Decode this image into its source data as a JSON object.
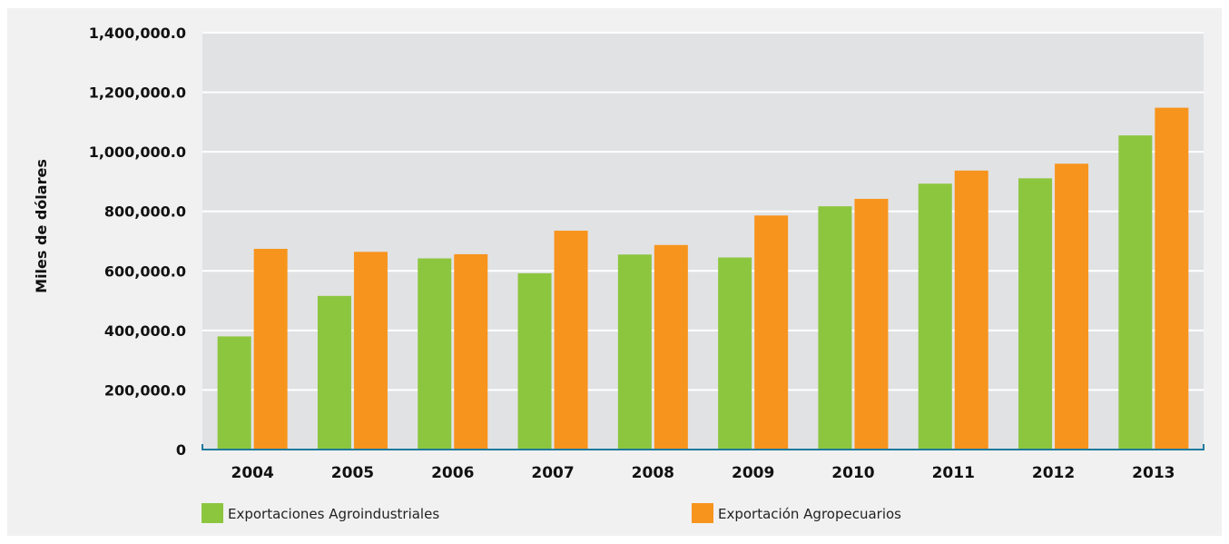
{
  "colors": {
    "plot_bg": "#e1e2e4",
    "frame_bg": "#f1f1f2",
    "grid": "#ffffff",
    "baseline": "#1f7a9c",
    "series1": "#8cc63f",
    "series2": "#f7941d"
  },
  "chart_data": {
    "type": "bar",
    "title": "",
    "xlabel": "",
    "ylabel": "Miles de dólares",
    "ylim": [
      0,
      1400000
    ],
    "yticks": [
      0,
      200000,
      400000,
      600000,
      800000,
      1000000,
      1200000,
      1400000
    ],
    "ytick_labels": [
      "0",
      "200,000.0",
      "400,000.0",
      "600,000.0",
      "800,000.0",
      "1,000,000.0",
      "1,200,000.0",
      "1,400,000.0"
    ],
    "categories": [
      "2004",
      "2005",
      "2006",
      "2007",
      "2008",
      "2009",
      "2010",
      "2011",
      "2012",
      "2013"
    ],
    "series": [
      {
        "name": "Exportaciones Agroindustriales",
        "color": "#8cc63f",
        "values": [
          380000,
          516000,
          642000,
          592000,
          655000,
          645000,
          817000,
          893000,
          911000,
          1055000
        ]
      },
      {
        "name": "Exportación Agropecuarios",
        "color": "#f7941d",
        "values": [
          674000,
          664000,
          656000,
          735000,
          687000,
          786000,
          842000,
          937000,
          960000,
          1148000
        ]
      }
    ],
    "grid": true,
    "legend": "bottom"
  }
}
